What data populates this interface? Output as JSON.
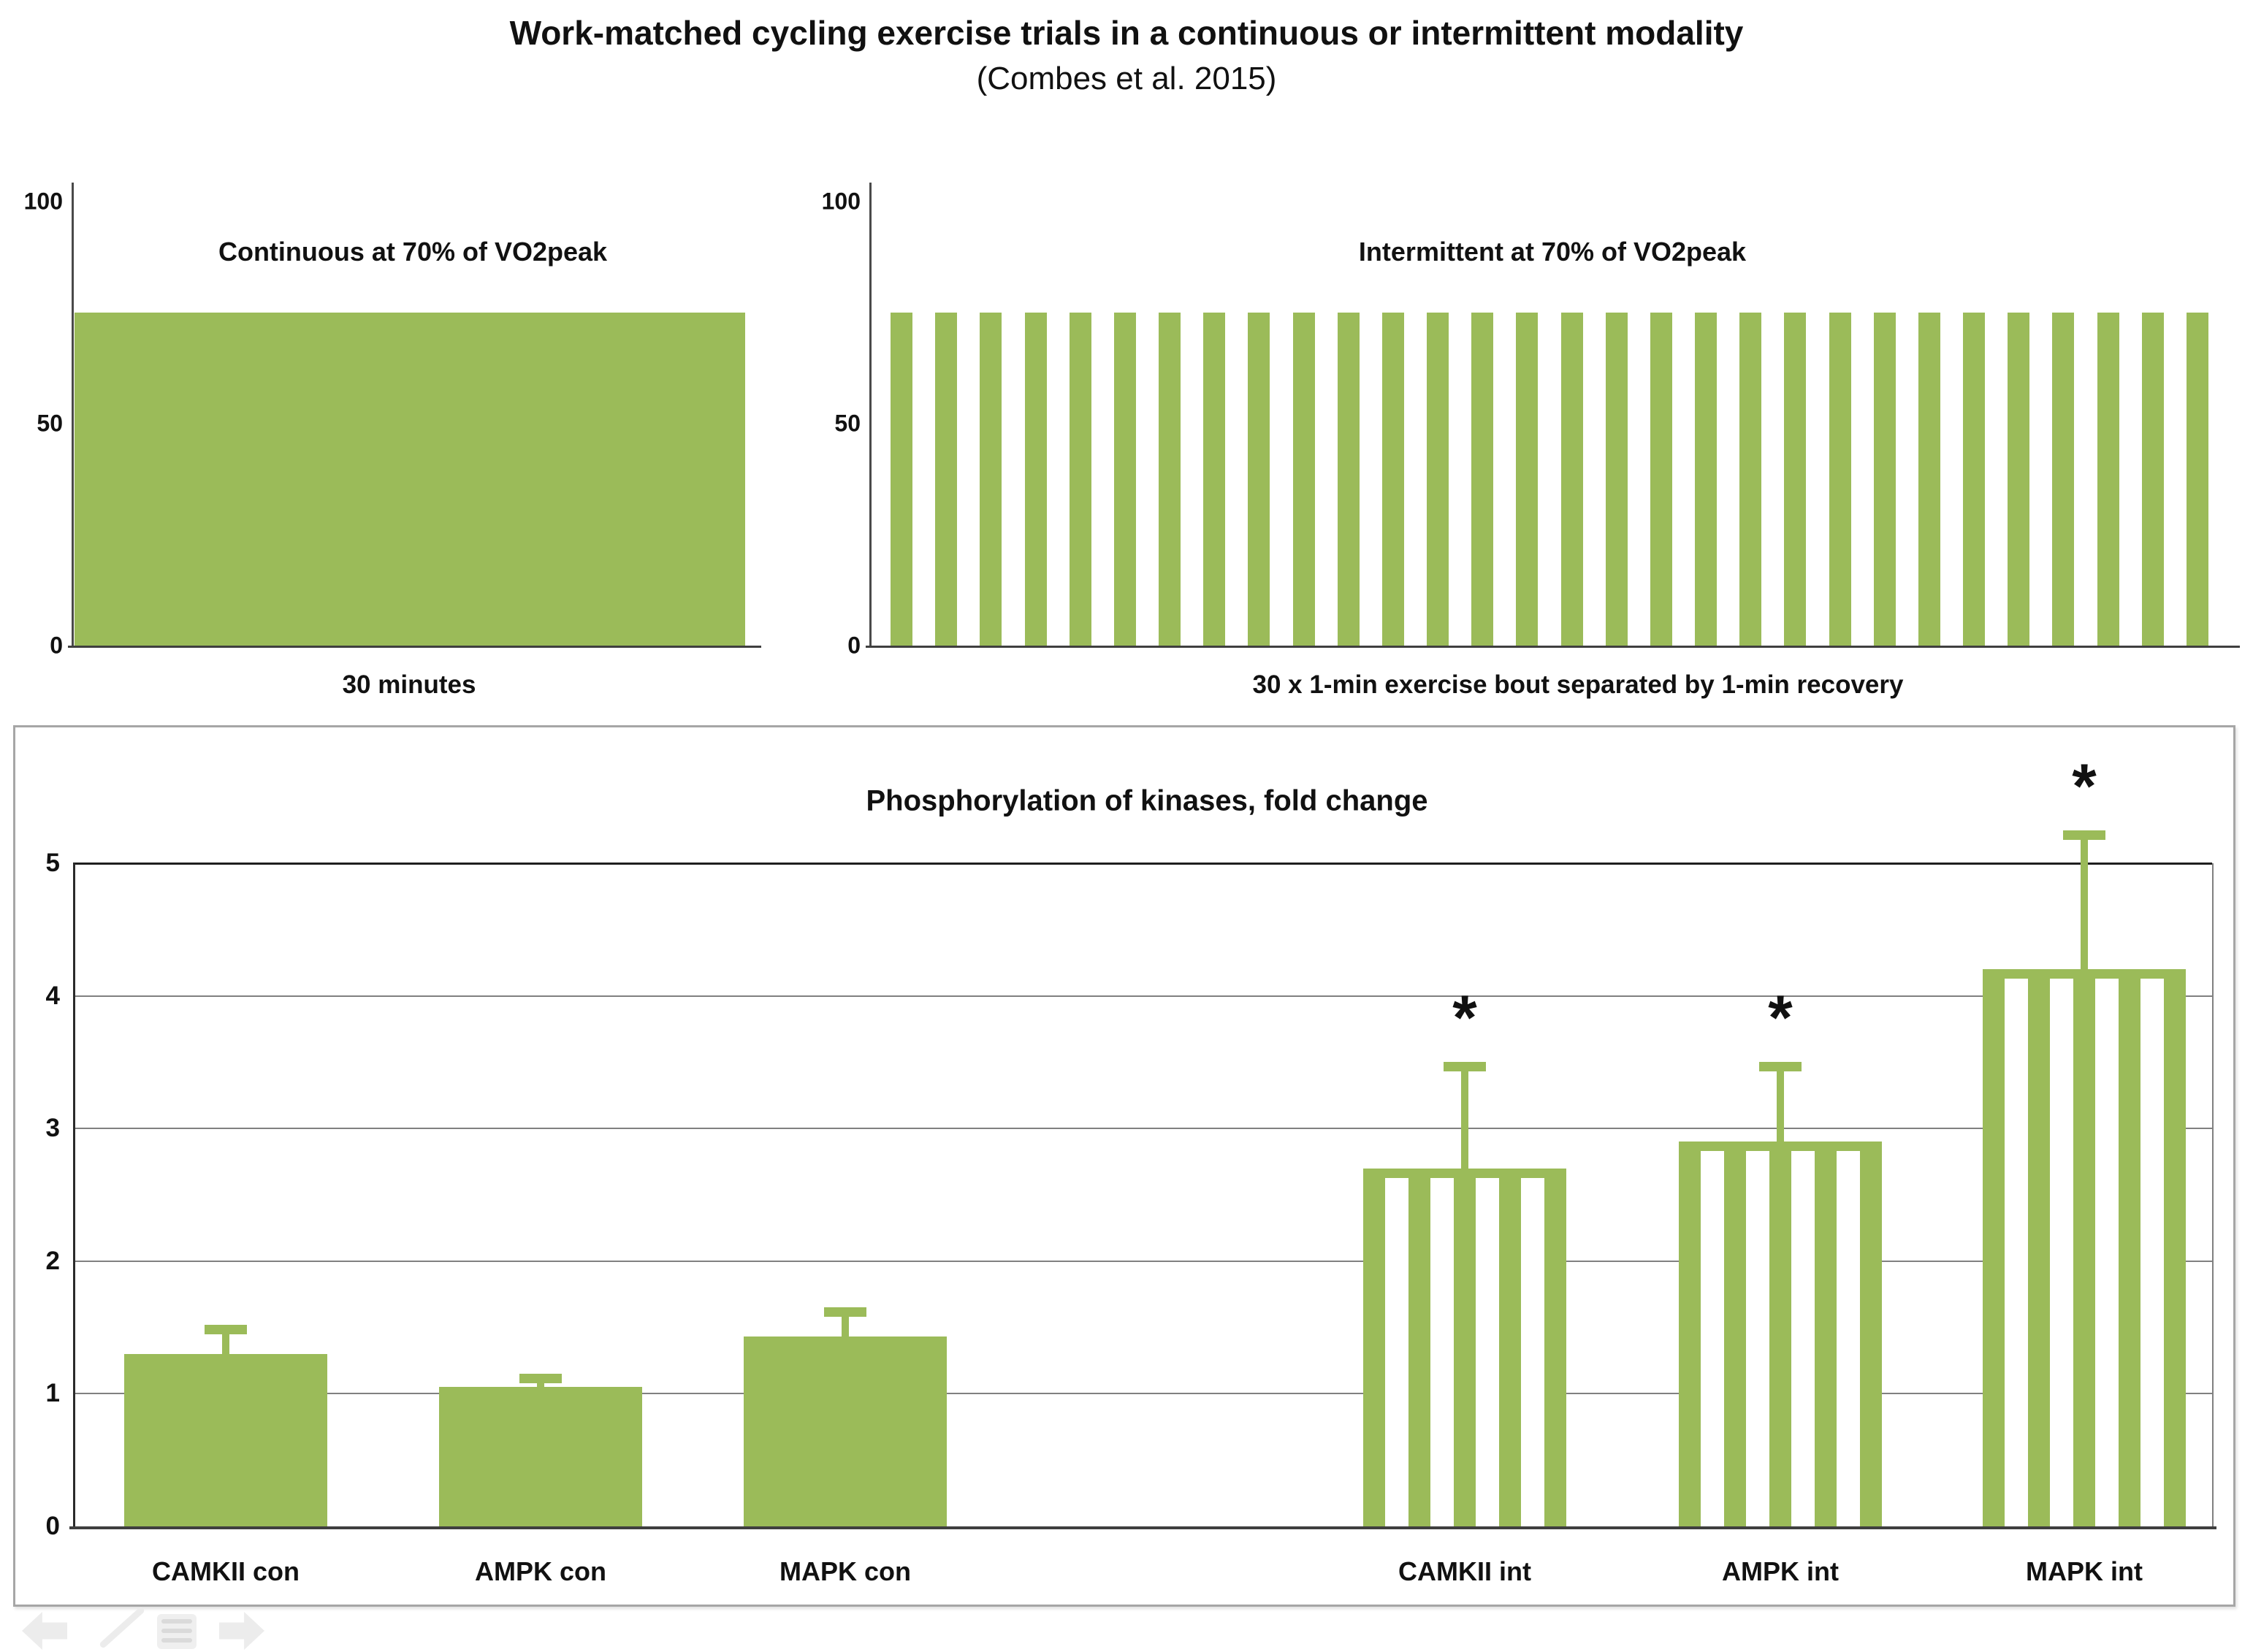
{
  "page": {
    "title": "Work-matched cycling exercise trials in a continuous or intermittent modality",
    "subtitle": "(Combes et al. 2015)"
  },
  "colors": {
    "bar_green": "#9bbb59",
    "gridline_gray": "#808080",
    "axis_dark": "#3f3f3f",
    "panel_border_gray": "#a6a6a6",
    "text": "#111111"
  },
  "chart_data": [
    {
      "id": "continuous",
      "type": "bar",
      "title": "Continuous at 70% of VO2peak",
      "xlabel": "30 minutes",
      "ylabel": "",
      "ylim": [
        0,
        100
      ],
      "yticks": [
        100,
        50,
        0
      ],
      "categories": [
        "30-min continuous bout"
      ],
      "values": [
        75
      ],
      "bar_style": "solid",
      "grid": false,
      "legend": "none"
    },
    {
      "id": "intermittent",
      "type": "bar",
      "title": "Intermittent at 70% of VO2peak",
      "xlabel": "30 x 1-min exercise bout separated by 1-min recovery",
      "ylabel": "",
      "ylim": [
        0,
        100
      ],
      "yticks": [
        100,
        50,
        0
      ],
      "categories": [
        "1-min bout (x30, alternating with 1-min recovery)"
      ],
      "values": [
        75
      ],
      "bar_count": 30,
      "bar_style": "repeated-solid",
      "grid": false,
      "legend": "none"
    },
    {
      "id": "kinases",
      "type": "bar",
      "title": "Phosphorylation of kinases, fold change",
      "xlabel": "",
      "ylabel": "",
      "ylim": [
        0,
        5
      ],
      "yticks": [
        5,
        4,
        3,
        2,
        1,
        0
      ],
      "grid": true,
      "legend": "none",
      "categories": [
        "CAMKII con",
        "AMPK con",
        "MAPK con",
        "CAMKII int",
        "AMPK int",
        "MAPK int"
      ],
      "values": [
        1.3,
        1.05,
        1.43,
        2.7,
        2.9,
        4.2
      ],
      "error_bar_tops": [
        1.52,
        1.15,
        1.65,
        3.5,
        3.5,
        5.25
      ],
      "significant": [
        false,
        false,
        false,
        true,
        true,
        true
      ],
      "sig_marker": "*",
      "bar_styles": [
        "solid",
        "solid",
        "solid",
        "striped",
        "striped",
        "striped"
      ]
    }
  ],
  "nav_controls": {
    "items": [
      "previous-slide",
      "pen-tool",
      "slideshow-menu",
      "next-slide"
    ]
  }
}
